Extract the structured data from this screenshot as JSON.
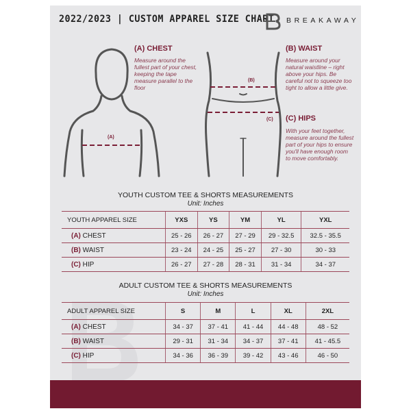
{
  "header": {
    "title": "2022/2023 | CUSTOM APPAREL SIZE CHART",
    "brand": "BREAKAWAY",
    "logo_letter": "B"
  },
  "guides": {
    "chest": {
      "heading": "(A) CHEST",
      "text": "Measure around the fullest part of your chest, keeping the tape measure parallel to the floor",
      "marker": "(A)"
    },
    "waist": {
      "heading": "(B) WAIST",
      "text": "Measure around your natural waistline – right above your hips. Be careful not to squeeze too tight to allow a little give.",
      "marker": "(B)"
    },
    "hips": {
      "heading": "(C) HIPS",
      "text": "With your feet together, measure around the fullest part of your hips to ensure you'll have enough room to move comfortably.",
      "marker": "(C)"
    }
  },
  "youth": {
    "title": "YOUTH CUSTOM TEE & SHORTS MEASUREMENTS",
    "unit": "Unit: Inches",
    "header": "YOUTH APPAREL SIZE",
    "sizes": [
      "YXS",
      "YS",
      "YM",
      "YL",
      "YXL"
    ],
    "rows": [
      {
        "code": "(A)",
        "name": "CHEST",
        "values": [
          "25 - 26",
          "26 - 27",
          "27 - 29",
          "29 - 32.5",
          "32.5 - 35.5"
        ]
      },
      {
        "code": "(B)",
        "name": "WAIST",
        "values": [
          "23 - 24",
          "24 - 25",
          "25 - 27",
          "27 - 30",
          "30 - 33"
        ]
      },
      {
        "code": "(C)",
        "name": "HIP",
        "values": [
          "26 - 27",
          "27 - 28",
          "28 - 31",
          "31 - 34",
          "34 - 37"
        ]
      }
    ]
  },
  "adult": {
    "title": "ADULT CUSTOM TEE & SHORTS MEASUREMENTS",
    "unit": "Unit: Inches",
    "header": "ADULT APPAREL SIZE",
    "sizes": [
      "S",
      "M",
      "L",
      "XL",
      "2XL"
    ],
    "rows": [
      {
        "code": "(A)",
        "name": "CHEST",
        "values": [
          "34 - 37",
          "37 - 41",
          "41 - 44",
          "44 - 48",
          "48 - 52"
        ]
      },
      {
        "code": "(B)",
        "name": "WAIST",
        "values": [
          "29 - 31",
          "31 - 34",
          "34 - 37",
          "37 - 41",
          "41 - 45.5"
        ]
      },
      {
        "code": "(C)",
        "name": "HIP",
        "values": [
          "34 - 36",
          "36 - 39",
          "39 - 42",
          "43 - 46",
          "46 - 50"
        ]
      }
    ]
  },
  "colors": {
    "accent": "#721a30",
    "background": "#e7e7e9"
  }
}
